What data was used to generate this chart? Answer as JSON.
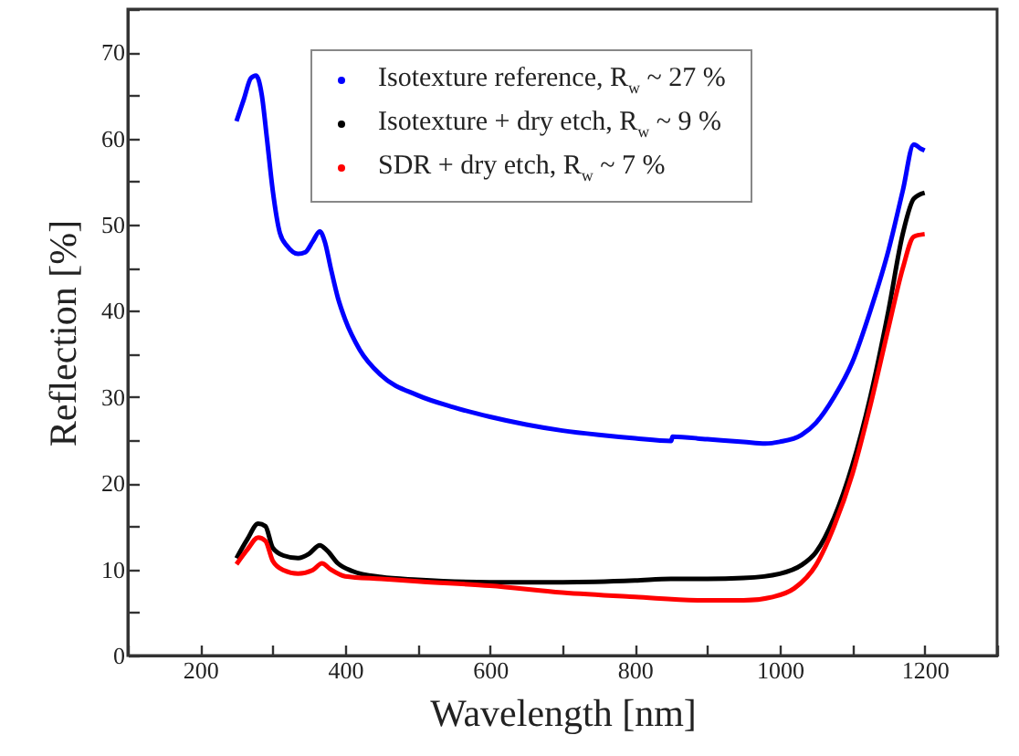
{
  "chart_data": {
    "type": "line",
    "xlabel": "Wavelength [nm]",
    "ylabel": "Reflection [%]",
    "xlim": [
      100,
      1300
    ],
    "ylim": [
      0,
      75
    ],
    "xticks": [
      {
        "value": 100,
        "label": null
      },
      200,
      {
        "value": 300,
        "label": null
      },
      400,
      {
        "value": 500,
        "label": null
      },
      600,
      {
        "value": 700,
        "label": null
      },
      800,
      {
        "value": 900,
        "label": null
      },
      1000,
      {
        "value": 1100,
        "label": null
      },
      1200,
      {
        "value": 1300,
        "label": null
      }
    ],
    "yticks": [
      0,
      {
        "value": 5,
        "label": null
      },
      10,
      {
        "value": 15,
        "label": null
      },
      20,
      {
        "value": 25,
        "label": null
      },
      30,
      {
        "value": 35,
        "label": null
      },
      40,
      {
        "value": 45,
        "label": null
      },
      50,
      {
        "value": 55,
        "label": null
      },
      60,
      {
        "value": 65,
        "label": null
      },
      70,
      {
        "value": 75,
        "label": null
      }
    ],
    "grid": false,
    "legend": "top",
    "marker": "none",
    "line_style": "solid",
    "series": [
      {
        "name": "Isotexture reference, R$_{w}$ ~ 27 %",
        "color": "#0000ff",
        "x": [
          250,
          260,
          270,
          277,
          285,
          292,
          300,
          310,
          320,
          335,
          345,
          355,
          365,
          372,
          380,
          390,
          400,
          420,
          450,
          500,
          550,
          600,
          650,
          700,
          750,
          800,
          850,
          852,
          900,
          950,
          980,
          1000,
          1030,
          1050,
          1075,
          1100,
          1125,
          1150,
          1170,
          1185,
          1195,
          1200
        ],
        "values": [
          62,
          64.5,
          67,
          67.3,
          65,
          60,
          54,
          49,
          47.5,
          46.6,
          46.8,
          48,
          49.2,
          48,
          45,
          41.5,
          39,
          35.5,
          32.5,
          30.2,
          28.8,
          27.7,
          26.8,
          26.1,
          25.6,
          25.2,
          24.9,
          25.4,
          25.1,
          24.8,
          24.6,
          24.8,
          25.6,
          27,
          30,
          34,
          40,
          47,
          54,
          59.3,
          58.8,
          58.6
        ]
      },
      {
        "name": "Isotexture + dry etch, R$_{w}$ ~ 9 %",
        "color": "#000000",
        "x": [
          250,
          265,
          280,
          290,
          300,
          315,
          335,
          350,
          365,
          375,
          390,
          410,
          450,
          500,
          600,
          700,
          800,
          850,
          900,
          950,
          1000,
          1030,
          1050,
          1075,
          1100,
          1125,
          1150,
          1170,
          1185,
          1200
        ],
        "values": [
          11.3,
          13.5,
          15.3,
          15,
          12.5,
          11.6,
          11.3,
          11.8,
          12.8,
          12.2,
          10.7,
          9.8,
          9.1,
          8.8,
          8.5,
          8.5,
          8.7,
          8.9,
          8.9,
          9,
          9.5,
          10.5,
          12,
          16,
          22,
          30,
          40,
          49,
          53,
          53.7
        ]
      },
      {
        "name": "SDR + dry etch, R$_{w}$ ~ 7 %",
        "color": "#ff0000",
        "x": [
          250,
          265,
          280,
          290,
          300,
          315,
          335,
          355,
          368,
          380,
          400,
          450,
          500,
          600,
          700,
          800,
          900,
          950,
          990,
          1020,
          1050,
          1075,
          1100,
          1125,
          1150,
          1170,
          1185,
          1200
        ],
        "values": [
          10.6,
          12.3,
          13.7,
          13.3,
          11,
          9.9,
          9.5,
          9.9,
          10.7,
          10,
          9.2,
          8.9,
          8.6,
          8.1,
          7.3,
          6.8,
          6.4,
          6.4,
          6.8,
          7.8,
          10.5,
          15,
          21,
          29,
          38,
          45,
          48.6,
          48.9
        ]
      }
    ]
  }
}
